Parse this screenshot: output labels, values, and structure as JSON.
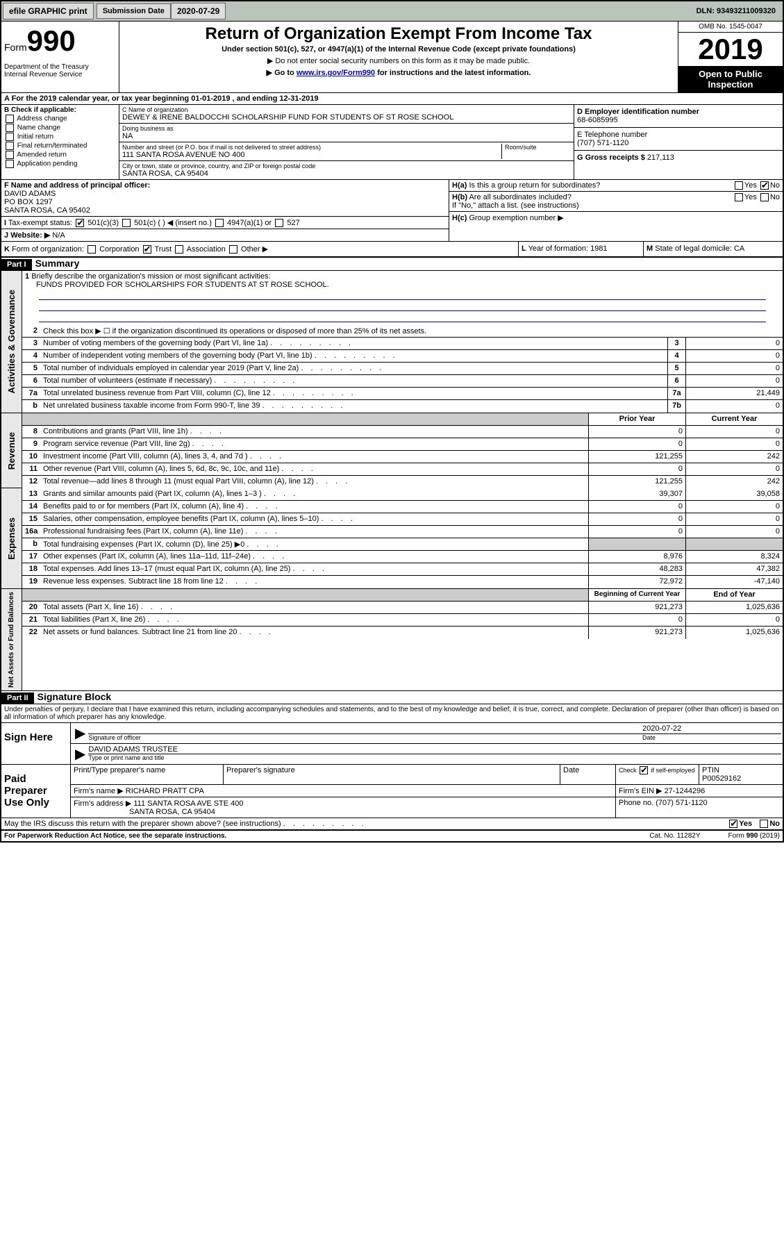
{
  "toolbar": {
    "efile": "efile GRAPHIC print",
    "sub_label": "Submission Date",
    "sub_date": "2020-07-29",
    "dln_label": "DLN:",
    "dln": "93493211009320"
  },
  "header": {
    "form_prefix": "Form",
    "form_num": "990",
    "dept": "Department of the Treasury\nInternal Revenue Service",
    "title": "Return of Organization Exempt From Income Tax",
    "subtitle": "Under section 501(c), 527, or 4947(a)(1) of the Internal Revenue Code (except private foundations)",
    "note1": "▶ Do not enter social security numbers on this form as it may be made public.",
    "note2_pre": "▶ Go to ",
    "note2_link": "www.irs.gov/Form990",
    "note2_post": " for instructions and the latest information.",
    "omb": "OMB No. 1545-0047",
    "year": "2019",
    "open": "Open to Public Inspection"
  },
  "period": {
    "prefix": "A For the 2019 calendar year, or tax year beginning ",
    "begin": "01-01-2019",
    "mid": " , and ending ",
    "end": "12-31-2019"
  },
  "box_b": {
    "title": "B Check if applicable:",
    "items": [
      "Address change",
      "Name change",
      "Initial return",
      "Final return/terminated",
      "Amended return",
      "Application pending"
    ]
  },
  "box_c": {
    "name_label": "C Name of organization",
    "name": "DEWEY & IRENE BALDOCCHI SCHOLARSHIP FUND FOR STUDENTS OF ST ROSE SCHOOL",
    "dba_label": "Doing business as",
    "dba": "NA",
    "addr_label": "Number and street (or P.O. box if mail is not delivered to street address)",
    "addr": "111 SANTA ROSA AVENUE NO 400",
    "room_label": "Room/suite",
    "city_label": "City or town, state or province, country, and ZIP or foreign postal code",
    "city": "SANTA ROSA, CA  95404"
  },
  "box_d": {
    "label": "D Employer identification number",
    "ein": "68-6085995"
  },
  "box_e": {
    "label": "E Telephone number",
    "phone": "(707) 571-1120"
  },
  "box_g": {
    "label": "G Gross receipts $",
    "val": "217,113"
  },
  "box_f": {
    "label": "F Name and address of principal officer:",
    "name": "DAVID ADAMS",
    "addr1": "PO BOX 1297",
    "addr2": "SANTA ROSA, CA  95402"
  },
  "box_h": {
    "a_label": "H(a)",
    "a_text": "Is this a group return for subordinates?",
    "b_label": "H(b)",
    "b_text": "Are all subordinates included?",
    "b_note": "If \"No,\" attach a list. (see instructions)",
    "c_label": "H(c)",
    "c_text": "Group exemption number ▶",
    "yes": "Yes",
    "no": "No"
  },
  "box_i": {
    "label": "I",
    "text": "Tax-exempt status:",
    "opt1": "501(c)(3)",
    "opt2": "501(c) (   ) ◀ (insert no.)",
    "opt3": "4947(a)(1) or",
    "opt4": "527"
  },
  "box_j": {
    "label": "J",
    "text": "Website: ▶",
    "val": "N/A"
  },
  "box_k": {
    "label": "K",
    "text": "Form of organization:",
    "opts": [
      "Corporation",
      "Trust",
      "Association",
      "Other ▶"
    ]
  },
  "box_l": {
    "label": "L",
    "text": "Year of formation:",
    "val": "1981"
  },
  "box_m": {
    "label": "M",
    "text": "State of legal domicile:",
    "val": "CA"
  },
  "part1": {
    "header": "Part I",
    "title": "Summary",
    "line1_label": "1",
    "line1_text": "Briefly describe the organization's mission or most significant activities:",
    "mission": "FUNDS PROVIDED FOR SCHOLARSHIPS FOR STUDENTS AT ST ROSE SCHOOL.",
    "line2_label": "2",
    "line2_text": "Check this box ▶ ☐ if the organization discontinued its operations or disposed of more than 25% of its net assets.",
    "sections": {
      "gov": "Activities & Governance",
      "rev": "Revenue",
      "exp": "Expenses",
      "net": "Net Assets or Fund Balances"
    },
    "lines_single": [
      {
        "n": "3",
        "t": "Number of voting members of the governing body (Part VI, line 1a)",
        "b": "3",
        "v": "0"
      },
      {
        "n": "4",
        "t": "Number of independent voting members of the governing body (Part VI, line 1b)",
        "b": "4",
        "v": "0"
      },
      {
        "n": "5",
        "t": "Total number of individuals employed in calendar year 2019 (Part V, line 2a)",
        "b": "5",
        "v": "0"
      },
      {
        "n": "6",
        "t": "Total number of volunteers (estimate if necessary)",
        "b": "6",
        "v": "0"
      },
      {
        "n": "7a",
        "t": "Total unrelated business revenue from Part VIII, column (C), line 12",
        "b": "7a",
        "v": "21,449"
      },
      {
        "n": "b",
        "t": "Net unrelated business taxable income from Form 990-T, line 39",
        "b": "7b",
        "v": "0"
      }
    ],
    "col_headers": {
      "prior": "Prior Year",
      "current": "Current Year",
      "begin": "Beginning of Current Year",
      "end": "End of Year"
    },
    "rev_lines": [
      {
        "n": "8",
        "t": "Contributions and grants (Part VIII, line 1h)",
        "p": "0",
        "c": "0"
      },
      {
        "n": "9",
        "t": "Program service revenue (Part VIII, line 2g)",
        "p": "0",
        "c": "0"
      },
      {
        "n": "10",
        "t": "Investment income (Part VIII, column (A), lines 3, 4, and 7d )",
        "p": "121,255",
        "c": "242"
      },
      {
        "n": "11",
        "t": "Other revenue (Part VIII, column (A), lines 5, 6d, 8c, 9c, 10c, and 11e)",
        "p": "0",
        "c": "0"
      },
      {
        "n": "12",
        "t": "Total revenue—add lines 8 through 11 (must equal Part VIII, column (A), line 12)",
        "p": "121,255",
        "c": "242"
      }
    ],
    "exp_lines": [
      {
        "n": "13",
        "t": "Grants and similar amounts paid (Part IX, column (A), lines 1–3 )",
        "p": "39,307",
        "c": "39,058"
      },
      {
        "n": "14",
        "t": "Benefits paid to or for members (Part IX, column (A), line 4)",
        "p": "0",
        "c": "0"
      },
      {
        "n": "15",
        "t": "Salaries, other compensation, employee benefits (Part IX, column (A), lines 5–10)",
        "p": "0",
        "c": "0"
      },
      {
        "n": "16a",
        "t": "Professional fundraising fees (Part IX, column (A), line 11e)",
        "p": "0",
        "c": "0"
      },
      {
        "n": "b",
        "t": "Total fundraising expenses (Part IX, column (D), line 25) ▶0",
        "p": "",
        "c": "",
        "shaded": true
      },
      {
        "n": "17",
        "t": "Other expenses (Part IX, column (A), lines 11a–11d, 11f–24e)",
        "p": "8,976",
        "c": "8,324"
      },
      {
        "n": "18",
        "t": "Total expenses. Add lines 13–17 (must equal Part IX, column (A), line 25)",
        "p": "48,283",
        "c": "47,382"
      },
      {
        "n": "19",
        "t": "Revenue less expenses. Subtract line 18 from line 12",
        "p": "72,972",
        "c": "-47,140"
      }
    ],
    "net_lines": [
      {
        "n": "20",
        "t": "Total assets (Part X, line 16)",
        "p": "921,273",
        "c": "1,025,636"
      },
      {
        "n": "21",
        "t": "Total liabilities (Part X, line 26)",
        "p": "0",
        "c": "0"
      },
      {
        "n": "22",
        "t": "Net assets or fund balances. Subtract line 21 from line 20",
        "p": "921,273",
        "c": "1,025,636"
      }
    ]
  },
  "part2": {
    "header": "Part II",
    "title": "Signature Block",
    "penalty": "Under penalties of perjury, I declare that I have examined this return, including accompanying schedules and statements, and to the best of my knowledge and belief, it is true, correct, and complete. Declaration of preparer (other than officer) is based on all information of which preparer has any knowledge.",
    "sign_here": "Sign Here",
    "sig_officer": "Signature of officer",
    "sig_date": "2020-07-22",
    "date_label": "Date",
    "type_name": "DAVID ADAMS TRUSTEE",
    "type_label": "Type or print name and title",
    "paid": "Paid Preparer Use Only",
    "prep_name_label": "Print/Type preparer's name",
    "prep_sig_label": "Preparer's signature",
    "prep_date_label": "Date",
    "check_if": "Check ☑ if self-employed",
    "ptin_label": "PTIN",
    "ptin": "P00529162",
    "firm_name_label": "Firm's name   ▶",
    "firm_name": "RICHARD PRATT CPA",
    "firm_ein_label": "Firm's EIN ▶",
    "firm_ein": "27-1244296",
    "firm_addr_label": "Firm's address ▶",
    "firm_addr": "111 SANTA ROSA AVE STE 400",
    "firm_city": "SANTA ROSA, CA  95404",
    "phone_label": "Phone no.",
    "phone": "(707) 571-1120",
    "discuss": "May the IRS discuss this return with the preparer shown above? (see instructions)",
    "yes": "Yes",
    "no": "No"
  },
  "footer": {
    "paperwork": "For Paperwork Reduction Act Notice, see the separate instructions.",
    "cat": "Cat. No. 11282Y",
    "form": "Form 990 (2019)"
  }
}
